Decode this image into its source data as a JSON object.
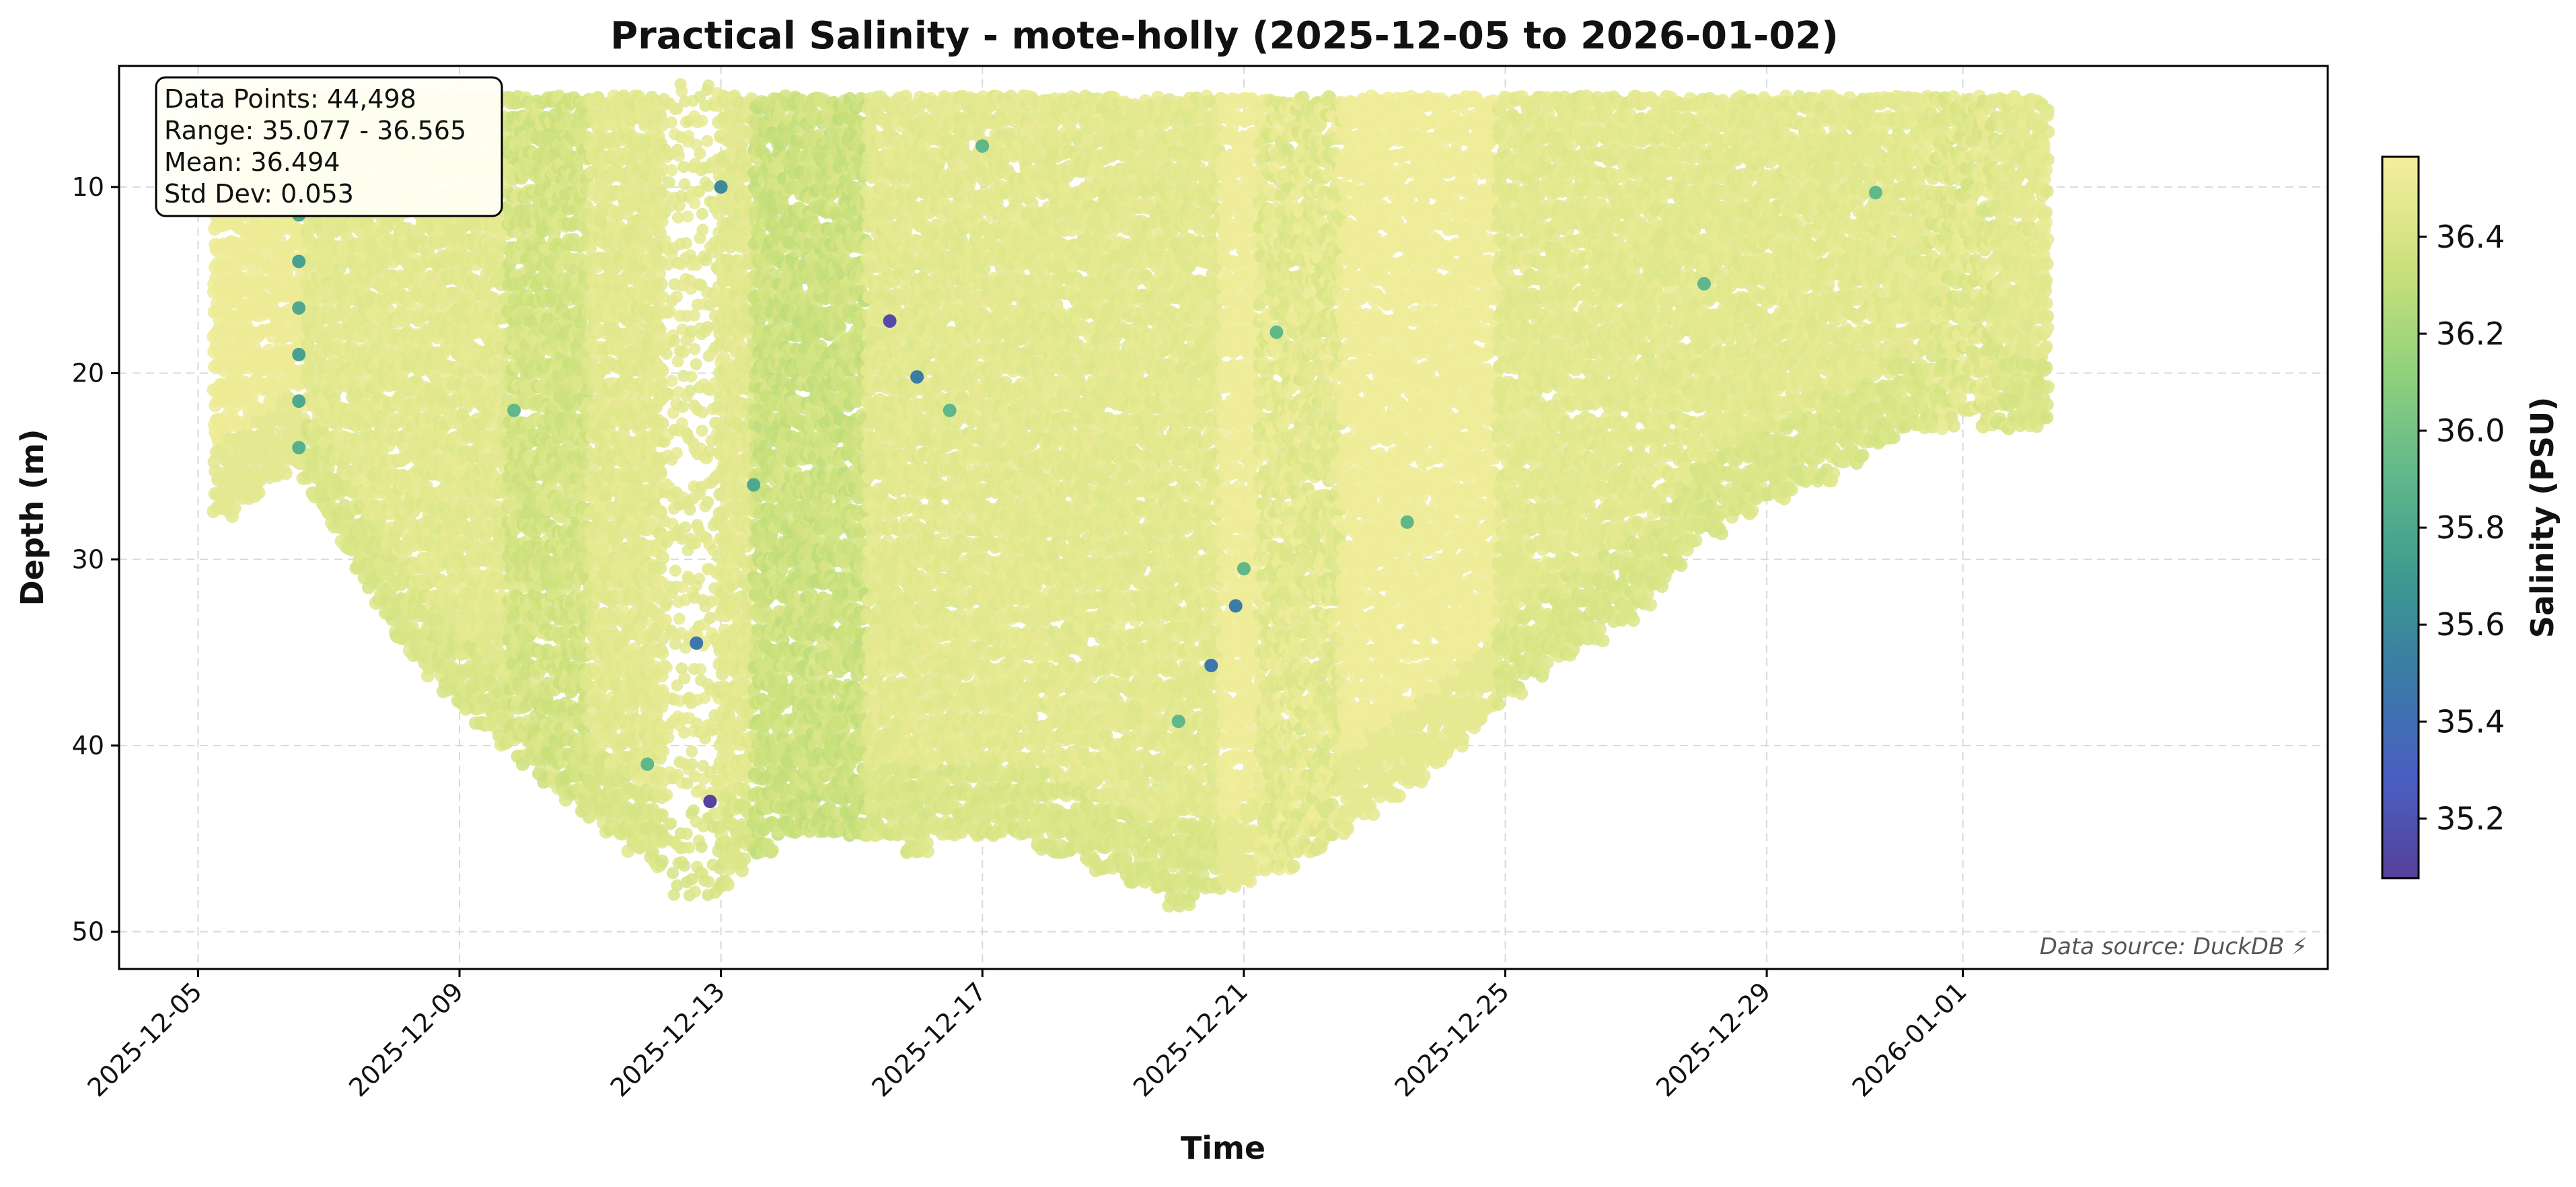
{
  "chart_data": {
    "type": "scatter",
    "title": "Practical Salinity - mote-holly (2025-12-05 to 2026-01-02)",
    "xlabel": "Time",
    "ylabel": "Depth (m)",
    "x_range": [
      "2025-12-03T19:00",
      "2026-01-06T14:00"
    ],
    "y_range": [
      52,
      3.5
    ],
    "y_inverted": true,
    "x_ticks": [
      "2025-12-05",
      "2025-12-09",
      "2025-12-13",
      "2025-12-17",
      "2025-12-21",
      "2025-12-25",
      "2025-12-29",
      "2026-01-01"
    ],
    "y_ticks": [
      10,
      20,
      30,
      40,
      50
    ],
    "grid": true,
    "colorbar": {
      "label": "Salinity (PSU)",
      "range": [
        35.077,
        36.565
      ],
      "ticks": [
        "35.2",
        "35.4",
        "35.6",
        "35.8",
        "36.0",
        "36.2",
        "36.4"
      ],
      "colormap": "viridis-reversed"
    },
    "stats_box": {
      "lines": [
        "Data Points: 44,498",
        "Range: 35.077 - 36.565",
        "Mean: 36.494",
        "Std Dev: 0.053"
      ],
      "placement": "top-left"
    },
    "source_note": "Data source: DuckDB ⚡",
    "profile_envelope": [
      [
        "2025-12-05T06:00",
        28
      ],
      [
        "2025-12-05T18:00",
        27
      ],
      [
        "2025-12-06T12:00",
        25
      ],
      [
        "2025-12-07T00:00",
        28
      ],
      [
        "2025-12-08T00:00",
        34
      ],
      [
        "2025-12-09T00:00",
        38
      ],
      [
        "2025-12-10T00:00",
        41
      ],
      [
        "2025-12-11T00:00",
        44
      ],
      [
        "2025-12-12T00:00",
        46.5
      ],
      [
        "2025-12-12T18:00",
        48.5
      ],
      [
        "2025-12-13T12:00",
        46
      ],
      [
        "2025-12-14T00:00",
        45
      ],
      [
        "2025-12-15T00:00",
        45
      ],
      [
        "2025-12-16T00:00",
        45.5
      ],
      [
        "2025-12-17T00:00",
        45
      ],
      [
        "2025-12-18T00:00",
        45.5
      ],
      [
        "2025-12-19T00:00",
        47
      ],
      [
        "2025-12-20T00:00",
        48.5
      ],
      [
        "2025-12-21T00:00",
        47.5
      ],
      [
        "2025-12-22T00:00",
        46
      ],
      [
        "2025-12-23T00:00",
        43.5
      ],
      [
        "2025-12-24T00:00",
        41
      ],
      [
        "2025-12-25T00:00",
        37.5
      ],
      [
        "2025-12-26T00:00",
        35
      ],
      [
        "2025-12-27T00:00",
        33
      ],
      [
        "2025-12-28T00:00",
        29
      ],
      [
        "2025-12-29T00:00",
        27
      ],
      [
        "2025-12-30T00:00",
        25.5
      ],
      [
        "2025-12-31T00:00",
        23.5
      ],
      [
        "2026-01-01T00:00",
        22.5
      ],
      [
        "2026-01-02T07:00",
        23
      ]
    ],
    "surface_depth": 5.5,
    "sparse_interval": [
      "2025-12-12T03:00",
      "2025-12-12T23:00"
    ],
    "fresher_bands": [
      [
        "2025-12-09T18:00",
        "2025-12-11T00:00",
        36.32
      ],
      [
        "2025-12-13T12:00",
        "2025-12-15T06:00",
        36.28
      ],
      [
        "2025-12-21T06:00",
        "2025-12-22T12:00",
        36.4
      ],
      [
        "2025-12-31T12:00",
        "2026-01-01T12:00",
        36.38
      ]
    ],
    "outliers": [
      {
        "x": "2025-12-06T13:00",
        "depth": 11.5,
        "salinity": 35.8
      },
      {
        "x": "2025-12-06T13:00",
        "depth": 14,
        "salinity": 35.75
      },
      {
        "x": "2025-12-06T13:00",
        "depth": 16.5,
        "salinity": 35.8
      },
      {
        "x": "2025-12-06T13:00",
        "depth": 19,
        "salinity": 35.75
      },
      {
        "x": "2025-12-06T13:00",
        "depth": 21.5,
        "salinity": 35.8
      },
      {
        "x": "2025-12-06T13:00",
        "depth": 24,
        "salinity": 35.85
      },
      {
        "x": "2025-12-09T20:00",
        "depth": 22,
        "salinity": 35.9
      },
      {
        "x": "2025-12-11T21:00",
        "depth": 41,
        "salinity": 35.9
      },
      {
        "x": "2025-12-12T15:00",
        "depth": 34.5,
        "salinity": 35.45
      },
      {
        "x": "2025-12-12T20:00",
        "depth": 43,
        "salinity": 35.1
      },
      {
        "x": "2025-12-13T00:00",
        "depth": 10,
        "salinity": 35.6
      },
      {
        "x": "2025-12-13T12:00",
        "depth": 26,
        "salinity": 35.8
      },
      {
        "x": "2025-12-15T14:00",
        "depth": 17.2,
        "salinity": 35.15
      },
      {
        "x": "2025-12-16T00:00",
        "depth": 20.2,
        "salinity": 35.5
      },
      {
        "x": "2025-12-16T12:00",
        "depth": 22,
        "salinity": 35.9
      },
      {
        "x": "2025-12-20T12:00",
        "depth": 35.7,
        "salinity": 35.45
      },
      {
        "x": "2025-12-20T00:00",
        "depth": 38.7,
        "salinity": 35.9
      },
      {
        "x": "2025-12-20T21:00",
        "depth": 32.5,
        "salinity": 35.5
      },
      {
        "x": "2025-12-21T00:00",
        "depth": 30.5,
        "salinity": 35.9
      },
      {
        "x": "2025-12-21T12:00",
        "depth": 17.8,
        "salinity": 35.9
      },
      {
        "x": "2025-12-23T12:00",
        "depth": 28,
        "salinity": 35.9
      },
      {
        "x": "2025-12-28T01:00",
        "depth": 15.2,
        "salinity": 35.9
      },
      {
        "x": "2025-12-30T16:00",
        "depth": 10.3,
        "salinity": 35.9
      },
      {
        "x": "2025-12-17T00:00",
        "depth": 7.8,
        "salinity": 35.9
      }
    ]
  }
}
